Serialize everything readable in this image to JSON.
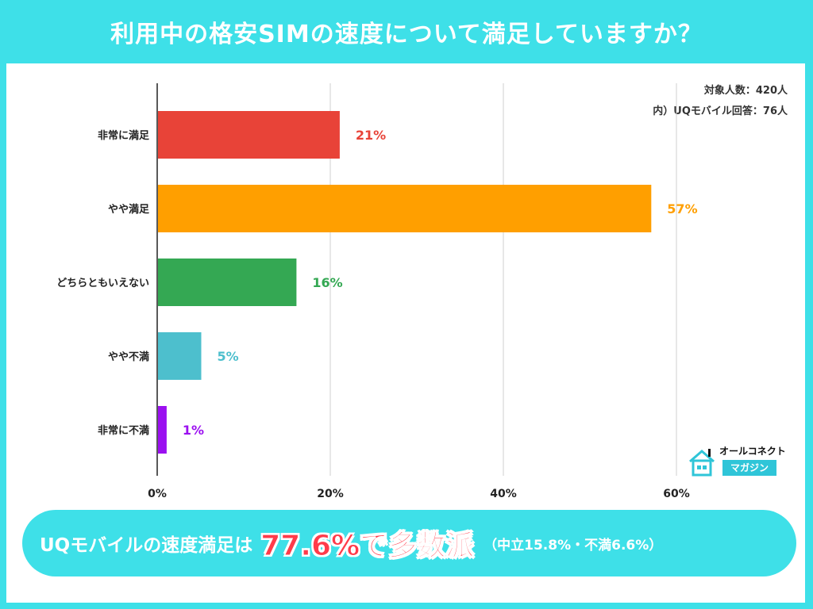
{
  "header": {
    "title": "利用中の格安SIMの速度について満足していますか？"
  },
  "respondents": {
    "total": "対象人数：420人",
    "subgroup": "内）UQモバイル回答：76人"
  },
  "logo": {
    "top_text": "オールコネクト",
    "bottom_text": "マガジン"
  },
  "summary": {
    "lead": "UQモバイルの速度満足は",
    "highlight": "77.6%で多数派",
    "note": "（中立15.8%・不満6.6%）"
  },
  "chart_data": {
    "type": "bar",
    "orientation": "horizontal",
    "categories": [
      "非常に満足",
      "やや満足",
      "どちらともいえない",
      "やや不満",
      "非常に不満"
    ],
    "values": [
      21,
      57,
      16,
      5,
      1
    ],
    "value_labels": [
      "21%",
      "57%",
      "16%",
      "5%",
      "1%"
    ],
    "colors": [
      "#e84338",
      "#ff9f00",
      "#34a853",
      "#4dbfcd",
      "#9b10f0"
    ],
    "xlim": [
      0,
      60
    ],
    "x_ticks": [
      0,
      20,
      40,
      60
    ],
    "x_tick_labels": [
      "0%",
      "20%",
      "40%",
      "60%"
    ],
    "grid": true
  }
}
